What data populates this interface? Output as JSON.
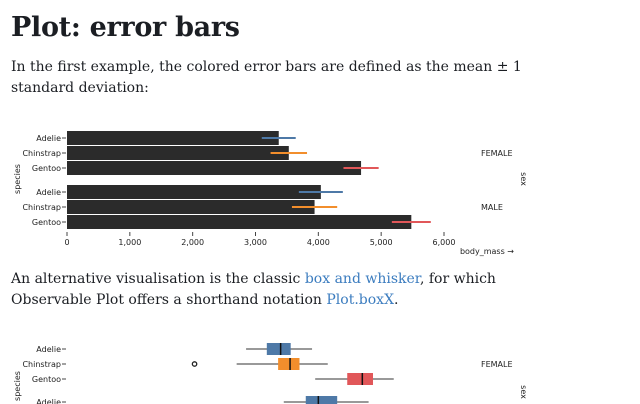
{
  "page": {
    "title": "Plot: error bars",
    "intro": "In the first example, the colored error bars are defined as the mean ± 1 standard deviation:",
    "alt_prefix": "An alternative visualisation is the classic ",
    "alt_link": "box and whisker",
    "alt_mid": ", for which Observable Plot offers a shorthand notation ",
    "alt_link2": "Plot.boxX",
    "alt_end": "."
  },
  "colors": {
    "Adelie": "#4e79a7",
    "Chinstrap": "#f28e2c",
    "Gentoo": "#e15759",
    "bar": "#2b2b2b",
    "axis": "#444444",
    "link": "#3b7cbf"
  },
  "chart_data": [
    {
      "type": "bar",
      "orientation": "horizontal",
      "xlabel": "body_mass →",
      "ylabel": "species",
      "facet_label": "sex",
      "xlim": [
        0,
        6000
      ],
      "xticks": [
        0,
        1000,
        2000,
        3000,
        4000,
        5000,
        6000
      ],
      "xtick_labels": [
        "0",
        "1,000",
        "2,000",
        "3,000",
        "4,000",
        "5,000",
        "6,000"
      ],
      "categories": [
        "Adelie",
        "Chinstrap",
        "Gentoo"
      ],
      "facets": [
        {
          "name": "FEMALE",
          "rows": [
            {
              "species": "Adelie",
              "mean": 3370,
              "sd": 270
            },
            {
              "species": "Chinstrap",
              "mean": 3530,
              "sd": 290
            },
            {
              "species": "Gentoo",
              "mean": 4680,
              "sd": 280
            }
          ]
        },
        {
          "name": "MALE",
          "rows": [
            {
              "species": "Adelie",
              "mean": 4040,
              "sd": 350
            },
            {
              "species": "Chinstrap",
              "mean": 3940,
              "sd": 360
            },
            {
              "species": "Gentoo",
              "mean": 5480,
              "sd": 310
            }
          ]
        }
      ]
    },
    {
      "type": "box",
      "orientation": "horizontal",
      "ylabel": "species",
      "facet_label": "sex",
      "xlim": [
        0,
        6000
      ],
      "categories": [
        "Adelie",
        "Chinstrap",
        "Gentoo"
      ],
      "facets": [
        {
          "name": "FEMALE",
          "rows": [
            {
              "species": "Adelie",
              "min": 2850,
              "q1": 3180,
              "median": 3400,
              "q3": 3560,
              "max": 3900,
              "outliers": []
            },
            {
              "species": "Chinstrap",
              "min": 2700,
              "q1": 3360,
              "median": 3550,
              "q3": 3700,
              "max": 4150,
              "outliers": [
                2030
              ]
            },
            {
              "species": "Gentoo",
              "min": 3950,
              "q1": 4460,
              "median": 4700,
              "q3": 4870,
              "max": 5200,
              "outliers": []
            }
          ]
        },
        {
          "name": "MALE",
          "rows": [
            {
              "species": "Adelie",
              "min": 3450,
              "q1": 3800,
              "median": 4000,
              "q3": 4300,
              "max": 4800,
              "outliers": []
            }
          ]
        }
      ]
    }
  ]
}
